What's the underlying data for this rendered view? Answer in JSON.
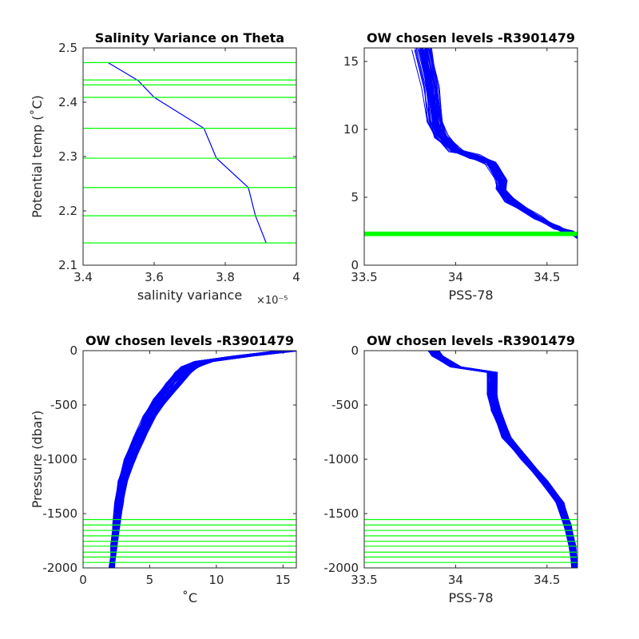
{
  "chart_data": [
    {
      "id": "p1",
      "type": "line",
      "title": "Salinity Variance on Theta",
      "xlabel": "salinity variance",
      "x_exponent": "×10⁻⁵",
      "ylabel": "Potential temp (˚C)",
      "xlim": [
        3.4,
        4.0
      ],
      "ylim": [
        2.1,
        2.5
      ],
      "xticks": [
        3.4,
        3.6,
        3.8,
        4.0
      ],
      "xticklabels": [
        "3.4",
        "3.6",
        "3.8",
        "4"
      ],
      "yticks": [
        2.1,
        2.2,
        2.3,
        2.4,
        2.5
      ],
      "yticklabels": [
        "2.1",
        "2.2",
        "2.3",
        "2.4",
        "2.5"
      ],
      "series": [
        {
          "color": "#0000ff",
          "x": [
            3.47,
            3.555,
            3.6,
            3.74,
            3.775,
            3.865,
            3.885,
            3.915
          ],
          "y": [
            2.473,
            2.44,
            2.409,
            2.352,
            2.297,
            2.243,
            2.191,
            2.141
          ]
        }
      ],
      "hlines": {
        "color": "#00ff00",
        "y": [
          2.473,
          2.441,
          2.432,
          2.409,
          2.352,
          2.297,
          2.243,
          2.191,
          2.141
        ]
      }
    },
    {
      "id": "p2",
      "type": "line",
      "title": "OW chosen levels -R3901479",
      "xlabel": "PSS-78",
      "ylabel": "",
      "xlim": [
        33.5,
        34.667
      ],
      "ylim": [
        0,
        16
      ],
      "xticks": [
        33.5,
        34.0,
        34.5
      ],
      "xticklabels": [
        "33.5",
        "34",
        "34.5"
      ],
      "yticks": [
        0,
        5,
        10,
        15
      ],
      "yticklabels": [
        "0",
        "5",
        "10",
        "15"
      ],
      "series_color": "#0000ff",
      "profile_count": 60,
      "profile_envelope": [
        [
          33.82,
          16.0
        ],
        [
          33.87,
          13.0
        ],
        [
          33.89,
          10.5
        ],
        [
          33.92,
          9.5
        ],
        [
          34.0,
          8.5
        ],
        [
          34.1,
          8.0
        ],
        [
          34.2,
          7.5
        ],
        [
          34.25,
          6.3
        ],
        [
          34.25,
          5.5
        ],
        [
          34.3,
          4.8
        ],
        [
          34.45,
          3.5
        ],
        [
          34.55,
          2.8
        ],
        [
          34.63,
          2.4
        ],
        [
          34.667,
          2.1
        ]
      ],
      "hlines": {
        "color": "#00ff00",
        "band": [
          2.14,
          2.473
        ]
      }
    },
    {
      "id": "p3",
      "type": "line",
      "title": "OW chosen levels -R3901479",
      "xlabel": "˚C",
      "ylabel": "Pressure (dbar)",
      "xlim": [
        0,
        16
      ],
      "ylim": [
        -2000,
        0
      ],
      "xticks": [
        0,
        5,
        10,
        15
      ],
      "xticklabels": [
        "0",
        "5",
        "10",
        "15"
      ],
      "yticks": [
        -2000,
        -1500,
        -1000,
        -500,
        0
      ],
      "yticklabels": [
        "-2000",
        "-1500",
        "-1000",
        "-500",
        "0"
      ],
      "series_color": "#0000ff",
      "profile_count": 60,
      "profile_envelope": [
        [
          15.5,
          0
        ],
        [
          12.0,
          -50
        ],
        [
          9.0,
          -100
        ],
        [
          8.0,
          -150
        ],
        [
          7.5,
          -200
        ],
        [
          6.8,
          -300
        ],
        [
          5.8,
          -450
        ],
        [
          5.0,
          -600
        ],
        [
          4.2,
          -800
        ],
        [
          3.5,
          -1000
        ],
        [
          3.0,
          -1200
        ],
        [
          2.7,
          -1400
        ],
        [
          2.5,
          -1600
        ],
        [
          2.3,
          -1800
        ],
        [
          2.15,
          -2000
        ]
      ],
      "hlines": {
        "color": "#00ff00",
        "y": [
          -1555,
          -1605,
          -1655,
          -1705,
          -1755,
          -1800,
          -1855,
          -1900,
          -1950
        ]
      }
    },
    {
      "id": "p4",
      "type": "line",
      "title": "OW chosen levels -R3901479",
      "xlabel": "PSS-78",
      "ylabel": "",
      "xlim": [
        33.5,
        34.667
      ],
      "ylim": [
        -2000,
        0
      ],
      "xticks": [
        33.5,
        34.0,
        34.5
      ],
      "xticklabels": [
        "33.5",
        "34",
        "34.5"
      ],
      "yticks": [
        -2000,
        -1500,
        -1000,
        -500,
        0
      ],
      "yticklabels": [
        "-2000",
        "-1500",
        "-1000",
        "-500",
        "0"
      ],
      "series_color": "#0000ff",
      "profile_count": 60,
      "profile_envelope": [
        [
          33.88,
          0
        ],
        [
          33.9,
          -50
        ],
        [
          34.0,
          -150
        ],
        [
          34.2,
          -200
        ],
        [
          34.2,
          -400
        ],
        [
          34.22,
          -550
        ],
        [
          34.28,
          -800
        ],
        [
          34.38,
          -1000
        ],
        [
          34.48,
          -1200
        ],
        [
          34.57,
          -1400
        ],
        [
          34.61,
          -1600
        ],
        [
          34.64,
          -1800
        ],
        [
          34.65,
          -2000
        ]
      ],
      "hlines": {
        "color": "#00ff00",
        "y": [
          -1555,
          -1605,
          -1655,
          -1705,
          -1755,
          -1800,
          -1855,
          -1900,
          -1950
        ]
      }
    }
  ]
}
